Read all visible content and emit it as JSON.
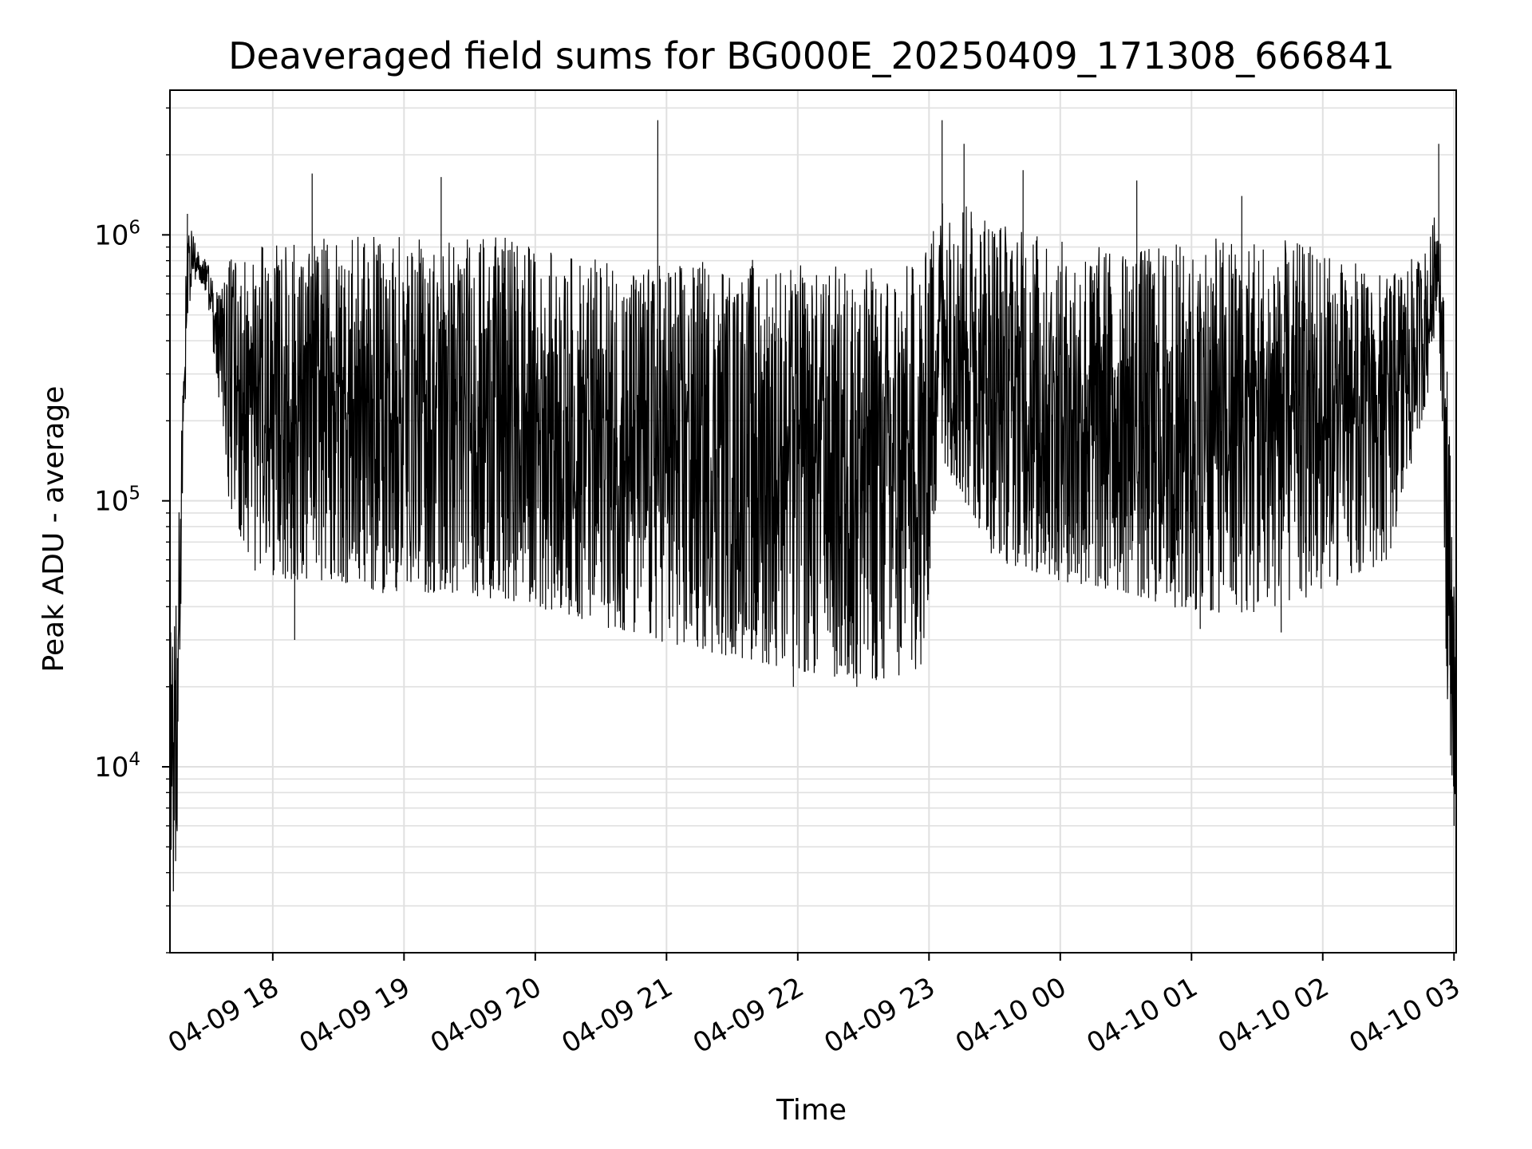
{
  "colors": {
    "line": "#000000",
    "grid": "#e0e0e0",
    "axes": "#000000",
    "background": "#ffffff"
  },
  "chart_data": {
    "type": "line",
    "title": "Deaveraged field sums for BG000E_20250409_171308_666841",
    "xlabel": "Time",
    "ylabel": "Peak ADU - average",
    "yscale": "log",
    "grid": "on",
    "legend": "none",
    "xlim": [
      "2025-04-09T17:13:00",
      "2025-04-10T03:01:00"
    ],
    "ylim": [
      2000,
      3500000
    ],
    "xticks": [
      {
        "t": "2025-04-09T18:00:00",
        "label": "04-09 18"
      },
      {
        "t": "2025-04-09T19:00:00",
        "label": "04-09 19"
      },
      {
        "t": "2025-04-09T20:00:00",
        "label": "04-09 20"
      },
      {
        "t": "2025-04-09T21:00:00",
        "label": "04-09 21"
      },
      {
        "t": "2025-04-09T22:00:00",
        "label": "04-09 22"
      },
      {
        "t": "2025-04-09T23:00:00",
        "label": "04-09 23"
      },
      {
        "t": "2025-04-10T00:00:00",
        "label": "04-10 00"
      },
      {
        "t": "2025-04-10T01:00:00",
        "label": "04-10 01"
      },
      {
        "t": "2025-04-10T02:00:00",
        "label": "04-10 02"
      },
      {
        "t": "2025-04-10T03:00:00",
        "label": "04-10 03"
      }
    ],
    "yticks": [
      {
        "value": 10000,
        "base": "10",
        "exp": "4"
      },
      {
        "value": 100000,
        "base": "10",
        "exp": "5"
      },
      {
        "value": 1000000,
        "base": "10",
        "exp": "6"
      }
    ],
    "series": [
      {
        "envelope": [
          {
            "t": "2025-04-09T17:13:00",
            "low": 2700,
            "high": 38000
          },
          {
            "t": "2025-04-09T17:16:00",
            "low": 4200,
            "high": 48000
          },
          {
            "t": "2025-04-09T17:19:00",
            "low": 100000,
            "high": 300000
          },
          {
            "t": "2025-04-09T17:21:00",
            "low": 500000,
            "high": 1200000
          },
          {
            "t": "2025-04-09T17:25:00",
            "low": 700000,
            "high": 900000
          },
          {
            "t": "2025-04-09T17:30:00",
            "low": 600000,
            "high": 800000
          },
          {
            "t": "2025-04-09T17:35:00",
            "low": 250000,
            "high": 600000
          },
          {
            "t": "2025-04-09T17:40:00",
            "low": 100000,
            "high": 800000
          },
          {
            "t": "2025-04-09T17:50:00",
            "low": 55000,
            "high": 900000
          },
          {
            "t": "2025-04-09T18:10:00",
            "low": 50000,
            "high": 950000
          },
          {
            "t": "2025-04-09T18:30:00",
            "low": 50000,
            "high": 980000
          },
          {
            "t": "2025-04-09T18:50:00",
            "low": 45000,
            "high": 1000000
          },
          {
            "t": "2025-04-09T19:20:00",
            "low": 45000,
            "high": 1000000
          },
          {
            "t": "2025-04-09T19:50:00",
            "low": 42000,
            "high": 980000
          },
          {
            "t": "2025-04-09T20:10:00",
            "low": 38000,
            "high": 850000
          },
          {
            "t": "2025-04-09T20:40:00",
            "low": 32000,
            "high": 800000
          },
          {
            "t": "2025-04-09T21:10:00",
            "low": 28000,
            "high": 800000
          },
          {
            "t": "2025-04-09T21:40:00",
            "low": 25000,
            "high": 820000
          },
          {
            "t": "2025-04-09T22:10:00",
            "low": 22000,
            "high": 780000
          },
          {
            "t": "2025-04-09T22:40:00",
            "low": 21000,
            "high": 780000
          },
          {
            "t": "2025-04-09T22:57:00",
            "low": 22000,
            "high": 780000
          },
          {
            "t": "2025-04-09T23:05:00",
            "low": 150000,
            "high": 1500000
          },
          {
            "t": "2025-04-09T23:30:00",
            "low": 60000,
            "high": 1200000
          },
          {
            "t": "2025-04-10T00:00:00",
            "low": 50000,
            "high": 950000
          },
          {
            "t": "2025-04-10T00:30:00",
            "low": 45000,
            "high": 900000
          },
          {
            "t": "2025-04-10T01:00:00",
            "low": 38000,
            "high": 950000
          },
          {
            "t": "2025-04-10T01:30:00",
            "low": 38000,
            "high": 1000000
          },
          {
            "t": "2025-04-10T02:00:00",
            "low": 45000,
            "high": 900000
          },
          {
            "t": "2025-04-10T02:30:00",
            "low": 60000,
            "high": 700000
          },
          {
            "t": "2025-04-10T02:48:00",
            "low": 250000,
            "high": 900000
          },
          {
            "t": "2025-04-10T02:53:00",
            "low": 600000,
            "high": 1400000
          },
          {
            "t": "2025-04-10T02:57:00",
            "low": 15000,
            "high": 400000
          },
          {
            "t": "2025-04-10T03:01:00",
            "low": 6000,
            "high": 25000
          }
        ],
        "spikes": [
          {
            "t": "2025-04-09T17:21:00",
            "value": 1200000
          },
          {
            "t": "2025-04-09T18:18:00",
            "value": 1700000
          },
          {
            "t": "2025-04-09T19:17:00",
            "value": 1650000
          },
          {
            "t": "2025-04-09T20:56:00",
            "value": 2700000
          },
          {
            "t": "2025-04-09T23:06:00",
            "value": 2700000
          },
          {
            "t": "2025-04-09T23:16:00",
            "value": 2200000
          },
          {
            "t": "2025-04-09T23:43:00",
            "value": 1750000
          },
          {
            "t": "2025-04-10T00:35:00",
            "value": 1600000
          },
          {
            "t": "2025-04-10T01:23:00",
            "value": 1400000
          },
          {
            "t": "2025-04-10T02:53:00",
            "value": 2200000
          },
          {
            "t": "2025-04-09T18:10:00",
            "value": 30000
          },
          {
            "t": "2025-04-09T21:58:00",
            "value": 20000
          },
          {
            "t": "2025-04-09T22:27:00",
            "value": 20000
          },
          {
            "t": "2025-04-10T01:04:00",
            "value": 33000
          },
          {
            "t": "2025-04-10T01:41:00",
            "value": 32000
          },
          {
            "t": "2025-04-10T03:00:00",
            "value": 6000
          }
        ]
      }
    ]
  }
}
